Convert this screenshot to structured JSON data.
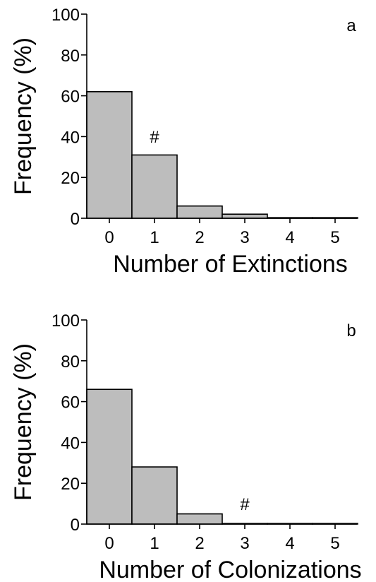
{
  "chart_data": [
    {
      "type": "bar",
      "panel_label": "a",
      "categories": [
        "0",
        "1",
        "2",
        "3",
        "4",
        "5"
      ],
      "values": [
        62,
        31,
        6,
        2,
        0.3,
        0.3
      ],
      "xlabel": "Number of Extinctions",
      "ylabel": "Frequency (%)",
      "ylim": [
        0,
        100
      ],
      "yticks": [
        "0",
        "20",
        "40",
        "60",
        "80",
        "100"
      ],
      "annotation": {
        "text": "#",
        "category_index": 1,
        "y": 37
      },
      "bar_color": "#bdbdbd"
    },
    {
      "type": "bar",
      "panel_label": "b",
      "categories": [
        "0",
        "1",
        "2",
        "3",
        "4",
        "5"
      ],
      "values": [
        66,
        28,
        5,
        0.3,
        0.3,
        0.3
      ],
      "xlabel": "Number of Colonizations",
      "ylabel": "Frequency (%)",
      "ylim": [
        0,
        100
      ],
      "yticks": [
        "0",
        "20",
        "40",
        "60",
        "80",
        "100"
      ],
      "annotation": {
        "text": "#",
        "category_index": 3,
        "y": 7
      },
      "bar_color": "#bdbdbd"
    }
  ]
}
